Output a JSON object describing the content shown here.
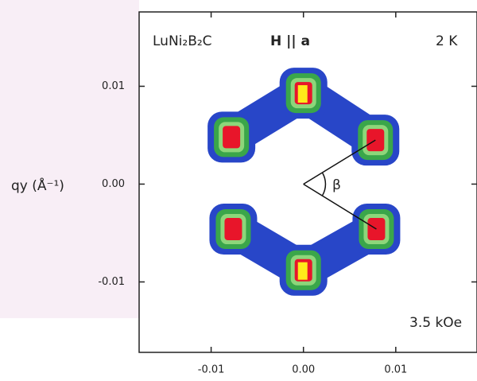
{
  "chart_data": {
    "type": "scatter",
    "title": "LuNi₂B₂C",
    "field_direction": "H || a",
    "temperature": "2 K",
    "field": "3.5 kOe",
    "angle_label": "β",
    "ylabel": "qy (Å⁻¹)",
    "x": [
      0.0,
      -0.0078,
      -0.0076,
      0.0,
      0.0078,
      0.0079
    ],
    "values": [
      0.0093,
      0.0048,
      -0.0046,
      -0.0088,
      0.0045,
      -0.0046
    ],
    "xlim": [
      -0.0178,
      0.0188
    ],
    "ylim": [
      -0.0172,
      0.0176
    ],
    "xticks": [
      -0.01,
      {
        "value": 0,
        "label": "0.00"
      },
      0.01
    ],
    "yticks": [
      0.01,
      {
        "value": 0,
        "label": "0.00"
      },
      -0.01
    ]
  }
}
